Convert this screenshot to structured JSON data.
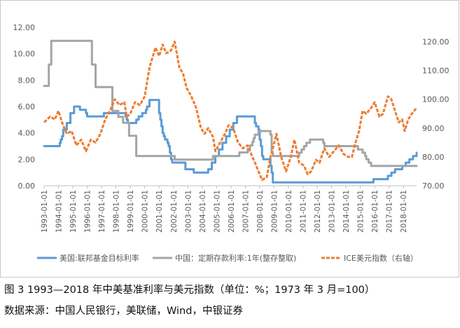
{
  "caption": {
    "title": "图 3   1993—2018 年中美基准利率与美元指数（单位：%；1973 年 3 月=100）",
    "source": "数据来源：中国人民银行，美联储，Wind，中银证券"
  },
  "colors": {
    "fed": "#5B9BD5",
    "china": "#A5A5A5",
    "dxy": "#ED7D31",
    "axis_text": "#595959",
    "axis_line": "#bfbfbf"
  },
  "chart_data": {
    "type": "line",
    "title": "",
    "xlabel": "",
    "ylabel": "",
    "ylabel_right": "",
    "ylim": [
      0,
      12
    ],
    "ylim_right": [
      70,
      125
    ],
    "y_ticks": [
      "0.00",
      "2.00",
      "4.00",
      "6.00",
      "8.00",
      "10.00",
      "12.00"
    ],
    "y_ticks_right": [
      "70.00",
      "80.00",
      "90.00",
      "100.00",
      "110.00",
      "120.00"
    ],
    "x_range": [
      "1993-01-01",
      "2018-12-01"
    ],
    "x_ticks": [
      "1993-01-01",
      "1994-01-01",
      "1995-01-01",
      "1996-01-01",
      "1997-01-01",
      "1998-01-01",
      "1999-01-01",
      "2000-01-01",
      "2001-01-01",
      "2002-01-01",
      "2003-01-01",
      "2004-01-01",
      "2005-01-01",
      "2006-01-01",
      "2007-01-01",
      "2008-01-01",
      "2009-01-01",
      "2010-01-01",
      "2011-01-01",
      "2012-01-01",
      "2013-01-01",
      "2014-01-01",
      "2015-01-01",
      "2016-01-01",
      "2017-01-01",
      "2018-01-01"
    ],
    "grid": false,
    "legend_position": "bottom",
    "series": [
      {
        "name": "美国:联邦基金目标利率",
        "axis": "left",
        "style": "solid",
        "x": [
          "1993-01-01",
          "1994-02-01",
          "1994-03-01",
          "1994-04-01",
          "1994-05-01",
          "1994-08-01",
          "1994-11-01",
          "1995-02-01",
          "1995-07-01",
          "1995-12-01",
          "1996-01-01",
          "1997-03-01",
          "1998-09-01",
          "1998-10-01",
          "1998-11-01",
          "1999-06-01",
          "1999-08-01",
          "1999-11-01",
          "2000-02-01",
          "2000-03-01",
          "2000-05-01",
          "2001-01-01",
          "2001-02-01",
          "2001-03-01",
          "2001-04-01",
          "2001-05-01",
          "2001-06-01",
          "2001-08-01",
          "2001-09-01",
          "2001-10-01",
          "2001-11-01",
          "2001-12-01",
          "2002-11-01",
          "2003-06-01",
          "2004-06-01",
          "2004-09-01",
          "2004-12-01",
          "2005-03-01",
          "2005-06-01",
          "2005-09-01",
          "2005-12-01",
          "2006-03-01",
          "2006-06-01",
          "2007-09-01",
          "2007-10-01",
          "2007-12-01",
          "2008-01-01",
          "2008-02-01",
          "2008-03-01",
          "2008-04-01",
          "2008-10-01",
          "2008-11-01",
          "2008-12-01",
          "2015-12-01",
          "2016-12-01",
          "2017-03-01",
          "2017-06-01",
          "2017-12-01",
          "2018-03-01",
          "2018-06-01",
          "2018-09-01",
          "2018-12-01"
        ],
        "values": [
          3.0,
          3.25,
          3.5,
          3.75,
          4.25,
          4.75,
          5.5,
          6.0,
          5.75,
          5.5,
          5.25,
          5.5,
          5.25,
          5.0,
          4.75,
          5.0,
          5.25,
          5.5,
          5.75,
          6.0,
          6.5,
          5.5,
          5.0,
          4.5,
          4.0,
          3.75,
          3.5,
          3.25,
          3.0,
          2.5,
          2.0,
          1.75,
          1.25,
          1.0,
          1.25,
          1.75,
          2.25,
          2.75,
          3.25,
          3.75,
          4.25,
          4.75,
          5.25,
          4.75,
          4.5,
          4.25,
          3.5,
          3.0,
          2.25,
          2.0,
          1.5,
          1.0,
          0.25,
          0.5,
          0.75,
          1.0,
          1.25,
          1.5,
          1.75,
          2.0,
          2.25,
          2.5
        ]
      },
      {
        "name": "中国：定期存款利率:1年(整存整取)",
        "axis": "left",
        "style": "solid",
        "x": [
          "1993-01-01",
          "1993-05-01",
          "1993-07-01",
          "1995-01-01",
          "1996-05-01",
          "1996-08-01",
          "1997-10-01",
          "1998-03-01",
          "1998-07-01",
          "1998-12-01",
          "1999-06-01",
          "2002-02-01",
          "2004-10-01",
          "2006-08-01",
          "2007-03-01",
          "2007-05-01",
          "2007-07-01",
          "2007-08-01",
          "2007-09-01",
          "2007-12-01",
          "2008-10-01",
          "2008-11-01",
          "2008-12-01",
          "2010-10-01",
          "2010-12-01",
          "2011-02-01",
          "2011-04-01",
          "2011-07-01",
          "2012-06-01",
          "2012-07-01",
          "2014-11-01",
          "2015-03-01",
          "2015-05-01",
          "2015-06-01",
          "2015-08-01",
          "2015-10-01",
          "2018-12-01"
        ],
        "values": [
          7.56,
          9.18,
          10.98,
          10.98,
          9.18,
          7.47,
          5.67,
          5.22,
          4.77,
          3.78,
          2.25,
          1.98,
          2.25,
          2.52,
          2.79,
          3.06,
          3.33,
          3.6,
          3.87,
          4.14,
          3.87,
          2.52,
          2.25,
          2.5,
          2.75,
          3.0,
          3.25,
          3.5,
          3.25,
          3.0,
          2.75,
          2.5,
          2.25,
          2.0,
          1.75,
          1.5,
          1.5
        ]
      },
      {
        "name": "ICE美元指数（右轴）",
        "axis": "right",
        "style": "dashed",
        "x": [
          "1993-01-01",
          "1993-06-01",
          "1993-10-01",
          "1994-01-01",
          "1994-04-01",
          "1994-08-01",
          "1994-12-01",
          "1995-04-01",
          "1995-08-01",
          "1995-12-01",
          "1996-04-01",
          "1996-08-01",
          "1996-12-01",
          "1997-04-01",
          "1997-08-01",
          "1997-12-01",
          "1998-04-01",
          "1998-08-01",
          "1998-10-01",
          "1999-01-01",
          "1999-05-01",
          "1999-09-01",
          "2000-01-01",
          "2000-05-01",
          "2000-10-01",
          "2001-01-01",
          "2001-04-01",
          "2001-07-01",
          "2001-11-01",
          "2002-02-01",
          "2002-06-01",
          "2002-09-01",
          "2002-12-01",
          "2003-04-01",
          "2003-08-01",
          "2003-12-01",
          "2004-03-01",
          "2004-06-01",
          "2004-10-01",
          "2004-12-01",
          "2005-04-01",
          "2005-08-01",
          "2005-11-01",
          "2006-03-01",
          "2006-07-01",
          "2006-11-01",
          "2007-03-01",
          "2007-07-01",
          "2007-11-01",
          "2008-03-01",
          "2008-07-01",
          "2008-10-01",
          "2008-12-01",
          "2009-03-01",
          "2009-07-01",
          "2009-11-01",
          "2010-03-01",
          "2010-06-01",
          "2010-10-01",
          "2011-02-01",
          "2011-05-01",
          "2011-08-01",
          "2011-12-01",
          "2012-03-01",
          "2012-07-01",
          "2012-11-01",
          "2013-03-01",
          "2013-07-01",
          "2013-11-01",
          "2014-03-01",
          "2014-06-01",
          "2014-09-01",
          "2014-12-01",
          "2015-03-01",
          "2015-06-01",
          "2015-10-01",
          "2016-01-01",
          "2016-05-01",
          "2016-08-01",
          "2016-12-01",
          "2017-03-01",
          "2017-06-01",
          "2017-09-01",
          "2017-12-01",
          "2018-02-01",
          "2018-05-01",
          "2018-08-01",
          "2018-12-01"
        ],
        "values": [
          92,
          94,
          93,
          96,
          92,
          88,
          89,
          84,
          86,
          82,
          86,
          85,
          88,
          93,
          96,
          100,
          98,
          99,
          94,
          95,
          99,
          98,
          101,
          111,
          118,
          115,
          119,
          116,
          117,
          120,
          111,
          109,
          104,
          101,
          97,
          90,
          88,
          90,
          87,
          82,
          85,
          88,
          91,
          90,
          85,
          83,
          84,
          80,
          76,
          72,
          73,
          80,
          83,
          88,
          80,
          75,
          80,
          86,
          78,
          77,
          74,
          75,
          79,
          78,
          83,
          80,
          82,
          84,
          81,
          80,
          80,
          85,
          89,
          96,
          95,
          97,
          99,
          94,
          95,
          101,
          100,
          96,
          92,
          93,
          89,
          93,
          95,
          97
        ]
      }
    ]
  }
}
